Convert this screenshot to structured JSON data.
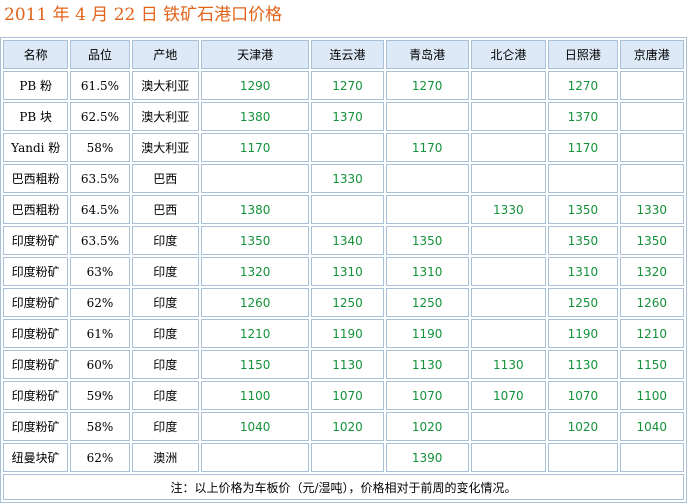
{
  "title": "2011 年 4 月 22 日 铁矿石港口价格",
  "table": {
    "headers": [
      "名称",
      "品位",
      "产地",
      "天津港",
      "连云港",
      "青岛港",
      "北仑港",
      "日照港",
      "京唐港"
    ],
    "rows": [
      [
        "PB 粉",
        "61.5%",
        "澳大利亚",
        1290,
        1270,
        1270,
        null,
        1270,
        null
      ],
      [
        "PB 块",
        "62.5%",
        "澳大利亚",
        1380,
        1370,
        null,
        null,
        1370,
        null
      ],
      [
        "Yandi 粉",
        "58%",
        "澳大利亚",
        1170,
        null,
        1170,
        null,
        1170,
        null
      ],
      [
        "巴西粗粉",
        "63.5%",
        "巴西",
        null,
        1330,
        null,
        null,
        null,
        null
      ],
      [
        "巴西粗粉",
        "64.5%",
        "巴西",
        1380,
        null,
        null,
        1330,
        1350,
        1330
      ],
      [
        "印度粉矿",
        "63.5%",
        "印度",
        1350,
        1340,
        1350,
        null,
        1350,
        1350
      ],
      [
        "印度粉矿",
        "63%",
        "印度",
        1320,
        1310,
        1310,
        null,
        1310,
        1320
      ],
      [
        "印度粉矿",
        "62%",
        "印度",
        1260,
        1250,
        1250,
        null,
        1250,
        1260
      ],
      [
        "印度粉矿",
        "61%",
        "印度",
        1210,
        1190,
        1190,
        null,
        1190,
        1210
      ],
      [
        "印度粉矿",
        "60%",
        "印度",
        1150,
        1130,
        1130,
        1130,
        1130,
        1150
      ],
      [
        "印度粉矿",
        "59%",
        "印度",
        1100,
        1070,
        1070,
        1070,
        1070,
        1100
      ],
      [
        "印度粉矿",
        "58%",
        "印度",
        1040,
        1020,
        1020,
        null,
        1020,
        1040
      ],
      [
        "纽曼块矿",
        "62%",
        "澳洲",
        null,
        null,
        1390,
        null,
        null,
        null
      ]
    ],
    "note": "注：以上价格为车板价（元/湿吨），价格相对于前周的变化情况。"
  }
}
